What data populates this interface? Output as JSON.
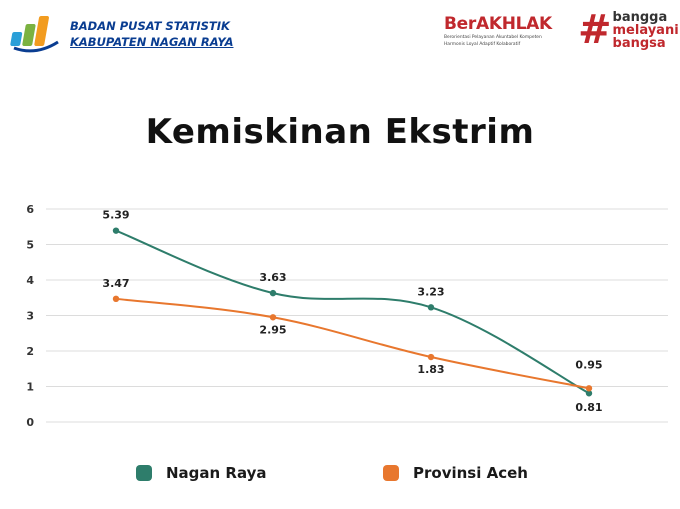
{
  "header": {
    "org_line1": "BADAN PUSAT STATISTIK",
    "org_line2": "KABUPATEN NAGAN RAYA",
    "berakhlak_word": "BerAKHLAK",
    "berakhlak_sub1": "Berorientasi Pelayanan Akuntabel Kompeten",
    "berakhlak_sub2": "Harmonis Loyal Adaptif Kolaboratif",
    "bangga_line1": "bangga",
    "bangga_line2": "melayani",
    "bangga_line3": "bangsa"
  },
  "colors": {
    "nagan_raya": "#2e7d6b",
    "provinsi_aceh": "#e8772e",
    "brand_red": "#c0282d",
    "brand_blue": "#0a3d91"
  },
  "chart_data": {
    "type": "line",
    "title": "Kemiskinan Ekstrim",
    "xlabel": "",
    "ylabel": "",
    "ylim": [
      0,
      6
    ],
    "yticks": [
      "0",
      "1",
      "2",
      "3",
      "4",
      "5",
      "6"
    ],
    "grid": true,
    "legend_position": "bottom",
    "categories": [
      "",
      "",
      "",
      ""
    ],
    "series": [
      {
        "name": "Nagan Raya",
        "values": [
          5.39,
          3.63,
          3.23,
          0.81
        ],
        "labels": [
          "5.39",
          "3.63",
          "3.23",
          "0.81"
        ]
      },
      {
        "name": "Provinsi Aceh",
        "values": [
          3.47,
          2.95,
          1.83,
          0.95
        ],
        "labels": [
          "3.47",
          "2.95",
          "1.83",
          "0.95"
        ]
      }
    ]
  }
}
